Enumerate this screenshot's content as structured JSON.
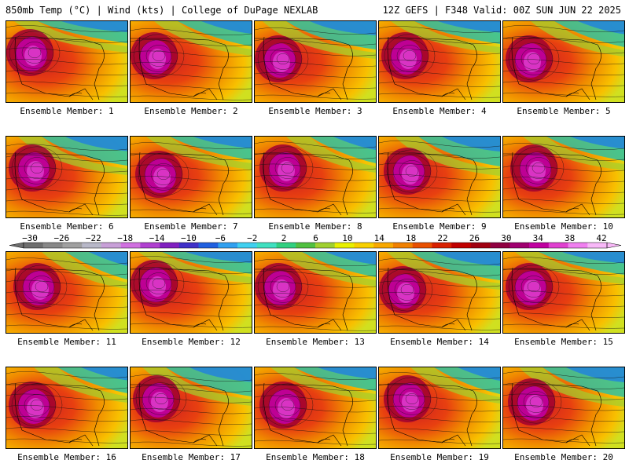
{
  "header": {
    "left_title": "850mb Temp (°C) | Wind (kts) | College of DuPage NEXLAB",
    "right_title": "12Z GEFS | F348 Valid: 00Z SUN JUN 22 2025"
  },
  "colorbar": {
    "labels": [
      "−30",
      "−26",
      "−22",
      "−18",
      "−14",
      "−10",
      "−6",
      "−2",
      "2",
      "6",
      "10",
      "14",
      "18",
      "22",
      "26",
      "30",
      "34",
      "38",
      "42"
    ],
    "colors": [
      "#6e6e6e",
      "#888888",
      "#a0a0a0",
      "#b8b8c8",
      "#c8a0d8",
      "#d070e0",
      "#b040d0",
      "#8020c0",
      "#4030c8",
      "#2060e0",
      "#30a0f0",
      "#40d0f0",
      "#40e0c0",
      "#30d080",
      "#50c040",
      "#a0d030",
      "#e8f000",
      "#f8d000",
      "#f8a800",
      "#f08000",
      "#e85000",
      "#d82000",
      "#c00000",
      "#a00010",
      "#900040",
      "#a00070",
      "#c000a0",
      "#e040d0",
      "#f080f0",
      "#f8b8f8"
    ]
  },
  "panels": [
    {
      "caption": "Ensemble Member: 1"
    },
    {
      "caption": "Ensemble Member: 2"
    },
    {
      "caption": "Ensemble Member: 3"
    },
    {
      "caption": "Ensemble Member: 4"
    },
    {
      "caption": "Ensemble Member: 5"
    },
    {
      "caption": "Ensemble Member: 6"
    },
    {
      "caption": "Ensemble Member: 7"
    },
    {
      "caption": "Ensemble Member: 8"
    },
    {
      "caption": "Ensemble Member: 9"
    },
    {
      "caption": "Ensemble Member: 10"
    },
    {
      "caption": "Ensemble Member: 11"
    },
    {
      "caption": "Ensemble Member: 12"
    },
    {
      "caption": "Ensemble Member: 13"
    },
    {
      "caption": "Ensemble Member: 14"
    },
    {
      "caption": "Ensemble Member: 15"
    },
    {
      "caption": "Ensemble Member: 16"
    },
    {
      "caption": "Ensemble Member: 17"
    },
    {
      "caption": "Ensemble Member: 18"
    },
    {
      "caption": "Ensemble Member: 19"
    },
    {
      "caption": "Ensemble Member: 20"
    }
  ]
}
